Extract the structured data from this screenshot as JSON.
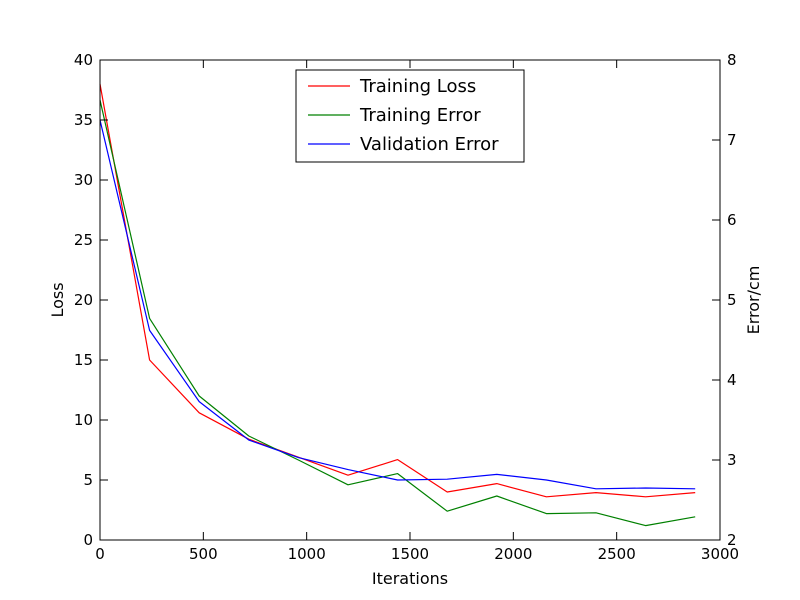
{
  "chart_data": {
    "type": "line",
    "title": "",
    "xlabel": "Iterations",
    "ylabel": "Loss",
    "y2label": "Error/cm",
    "xlim": [
      0,
      3000
    ],
    "ylim": [
      0,
      40
    ],
    "y2lim": [
      2,
      8
    ],
    "xticks": [
      0,
      500,
      1000,
      1500,
      2000,
      2500,
      3000
    ],
    "yticks": [
      0,
      5,
      10,
      15,
      20,
      25,
      30,
      35,
      40
    ],
    "y2ticks": [
      2,
      3,
      4,
      5,
      6,
      7,
      8
    ],
    "grid": false,
    "legend": "top-center",
    "series": [
      {
        "name": "Training Loss",
        "axis": "left",
        "color": "#ff0000",
        "x": [
          0,
          240,
          480,
          720,
          960,
          1200,
          1440,
          1680,
          1920,
          2160,
          2400,
          2640,
          2880
        ],
        "values": [
          38,
          15,
          10.6,
          8.4,
          6.9,
          5.4,
          6.7,
          4.0,
          4.7,
          3.6,
          3.95,
          3.6,
          3.95
        ]
      },
      {
        "name": "Training Error",
        "axis": "right",
        "color": "#008000",
        "x": [
          0,
          240,
          480,
          720,
          960,
          1200,
          1440,
          1680,
          1920,
          2160,
          2400,
          2640,
          2880
        ],
        "values": [
          7.5,
          4.77,
          3.8,
          3.3,
          3.0,
          2.69,
          2.83,
          2.36,
          2.55,
          2.33,
          2.34,
          2.18,
          2.29
        ]
      },
      {
        "name": "Validation Error",
        "axis": "right",
        "color": "#0000ff",
        "x": [
          0,
          240,
          480,
          720,
          960,
          1200,
          1440,
          1680,
          1920,
          2160,
          2400,
          2640,
          2880
        ],
        "values": [
          7.25,
          4.62,
          3.73,
          3.25,
          3.03,
          2.88,
          2.75,
          2.76,
          2.82,
          2.75,
          2.64,
          2.65,
          2.64
        ]
      }
    ]
  }
}
